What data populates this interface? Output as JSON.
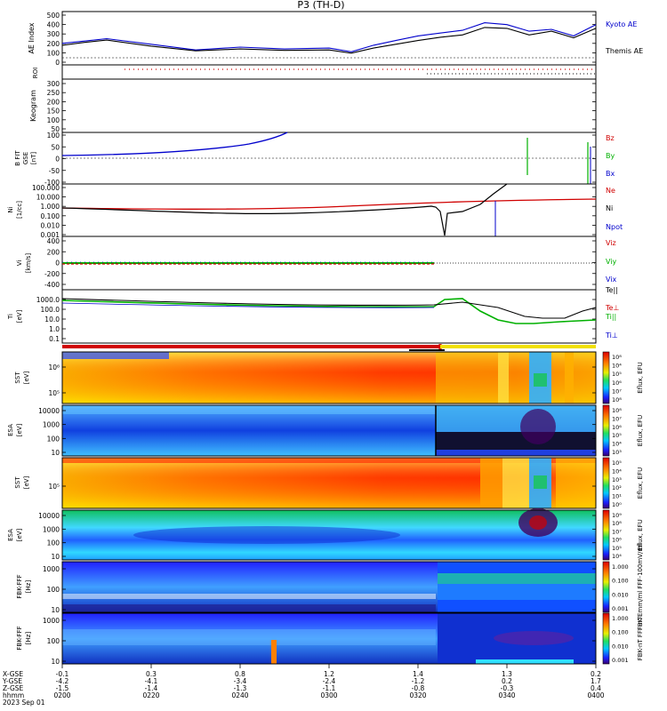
{
  "page": {
    "title": "P3 (TH-D)",
    "bottom_axis": {
      "row_labels": [
        "X-GSE",
        "Y-GSE",
        "Z-GSE",
        "hhmm",
        "2023 Sep 01"
      ],
      "columns": [
        {
          "xgse": "-0.1",
          "ygse": "-4.2",
          "zgse": "-1.5",
          "hhmm": "0200"
        },
        {
          "xgse": "0.3",
          "ygse": "-4.1",
          "zgse": "-1.4",
          "hhmm": "0220"
        },
        {
          "xgse": "0.8",
          "ygse": "-3.4",
          "zgse": "-1.3",
          "hhmm": "0240"
        },
        {
          "xgse": "1.2",
          "ygse": "-2.4",
          "zgse": "-1.1",
          "hhmm": "0300"
        },
        {
          "xgse": "1.4",
          "ygse": "-1.2",
          "zgse": "-0.8",
          "hhmm": "0320"
        },
        {
          "xgse": "1.3",
          "ygse": "0.2",
          "zgse": "-0.3",
          "hhmm": "0340"
        },
        {
          "xgse": "0.2",
          "ygse": "1.7",
          "zgse": "0.4",
          "hhmm": "0400"
        }
      ]
    }
  },
  "colors": {
    "black": "#000000",
    "blue": "#0000cc",
    "red": "#d00000",
    "green": "#00b000",
    "yellow": "#f0e000"
  },
  "chart_data": [
    {
      "type": "line",
      "ylabel": "AE Index",
      "yticks": [
        "500",
        "400",
        "300",
        "200",
        "100",
        "0"
      ],
      "ylim": [
        -50,
        520
      ],
      "x": [
        0,
        5,
        10,
        20,
        30,
        40,
        50,
        60,
        65,
        70,
        75,
        80,
        85,
        90,
        95,
        100,
        105,
        110,
        115,
        120
      ],
      "series": [
        {
          "name": "Kyoto AE",
          "color": "#0000cc",
          "values": [
            180,
            205,
            230,
            170,
            110,
            140,
            120,
            130,
            90,
            160,
            210,
            260,
            290,
            320,
            400,
            380,
            310,
            330,
            260,
            380
          ]
        },
        {
          "name": "Themis AE",
          "color": "#000000",
          "values": [
            160,
            190,
            215,
            150,
            100,
            120,
            105,
            110,
            75,
            130,
            170,
            210,
            245,
            270,
            350,
            340,
            270,
            310,
            240,
            340
          ]
        }
      ],
      "legend": [
        "Kyoto AE",
        "Themis AE"
      ]
    },
    {
      "type": "table",
      "ylabel": "ROI"
    },
    {
      "type": "heatmap",
      "ylabel": "Keogram",
      "yticks": [
        "300",
        "250",
        "200",
        "150",
        "100",
        "50"
      ]
    },
    {
      "type": "line",
      "ylabel_lines": [
        "B FIT",
        "GSE",
        "[nT]"
      ],
      "yticks": [
        "100",
        "50",
        "0",
        "-50",
        "-100"
      ],
      "ylim": [
        -100,
        100
      ],
      "legend": [
        "Bz",
        "By",
        "Bx"
      ],
      "series": [
        {
          "name": "Bx",
          "color": "#0000cc",
          "values": [
            10,
            20,
            35,
            55,
            80,
            100
          ]
        }
      ]
    },
    {
      "type": "line",
      "ylabel_lines": [
        "Ni",
        "[1/cc]"
      ],
      "yticks": [
        "100.000",
        "10.000",
        "1.000",
        "0.100",
        "0.010",
        "0.001"
      ],
      "log": true,
      "legend": [
        "Ne",
        "Ni",
        "Npot"
      ]
    },
    {
      "type": "line",
      "ylabel_lines": [
        "Vi",
        "[km/s]"
      ],
      "yticks": [
        "400",
        "200",
        "0",
        "-200",
        "-400"
      ],
      "ylim": [
        -500,
        500
      ],
      "legend": [
        "Viz",
        "Viy",
        "Vix"
      ]
    },
    {
      "type": "line",
      "ylabel_lines": [
        "Ti",
        "[eV]"
      ],
      "yticks": [
        "1000.0",
        "100.0",
        "10.0",
        "1.0",
        "0.1"
      ],
      "log": true,
      "legend": [
        "Te||",
        "Te⊥",
        "Ti||",
        "Ti⊥"
      ]
    },
    {
      "type": "heatmap",
      "ylabel_lines": [
        "SST",
        "[eV]"
      ],
      "yticks": [
        "10⁶",
        "10⁵"
      ],
      "colorbar": {
        "label": "Eflux, EFU",
        "ticks": [
          "10⁸",
          "10⁴",
          "10⁵",
          "10⁶",
          "10⁷",
          "10⁸"
        ]
      }
    },
    {
      "type": "heatmap",
      "ylabel_lines": [
        "ESA",
        "[eV]"
      ],
      "yticks": [
        "10000",
        "1000",
        "100",
        "10"
      ],
      "colorbar": {
        "label": "Eflux, EFU",
        "ticks": [
          "10⁸",
          "10⁷",
          "10⁶",
          "10⁵",
          "10⁴",
          "10³"
        ]
      }
    },
    {
      "type": "heatmap",
      "ylabel_lines": [
        "SST",
        "[eV]"
      ],
      "yticks": [
        "10⁵"
      ],
      "colorbar": {
        "label": "Eflux, EFU",
        "ticks": [
          "10⁵",
          "10⁴",
          "10³",
          "10²",
          "10¹",
          "10⁰"
        ]
      }
    },
    {
      "type": "heatmap",
      "ylabel_lines": [
        "ESA",
        "[eV]"
      ],
      "yticks": [
        "10000",
        "1000",
        "100",
        "10"
      ],
      "colorbar": {
        "label": "Eflux, EFU",
        "ticks": [
          "10⁹",
          "10⁸",
          "10⁷",
          "10⁶",
          "10⁵",
          "10⁴"
        ]
      }
    },
    {
      "type": "heatmap",
      "ylabel_lines": [
        "FBK-FFF",
        "[Hz]"
      ],
      "yticks": [
        "1000",
        "100",
        "10"
      ],
      "colorbar": {
        "label": "FBK-Emm/ml FFF-100mV/ml",
        "ticks": [
          "1.000",
          "0.100",
          "0.010",
          "0.001"
        ]
      }
    },
    {
      "type": "heatmap",
      "ylabel_lines": [
        "FBK-FFF",
        "[Hz]"
      ],
      "yticks": [
        "1000",
        "100",
        "10"
      ],
      "colorbar": {
        "label": "FBK-nT FFF-nT",
        "ticks": [
          "1.000",
          "0.100",
          "0.010",
          "0.001"
        ]
      }
    }
  ]
}
